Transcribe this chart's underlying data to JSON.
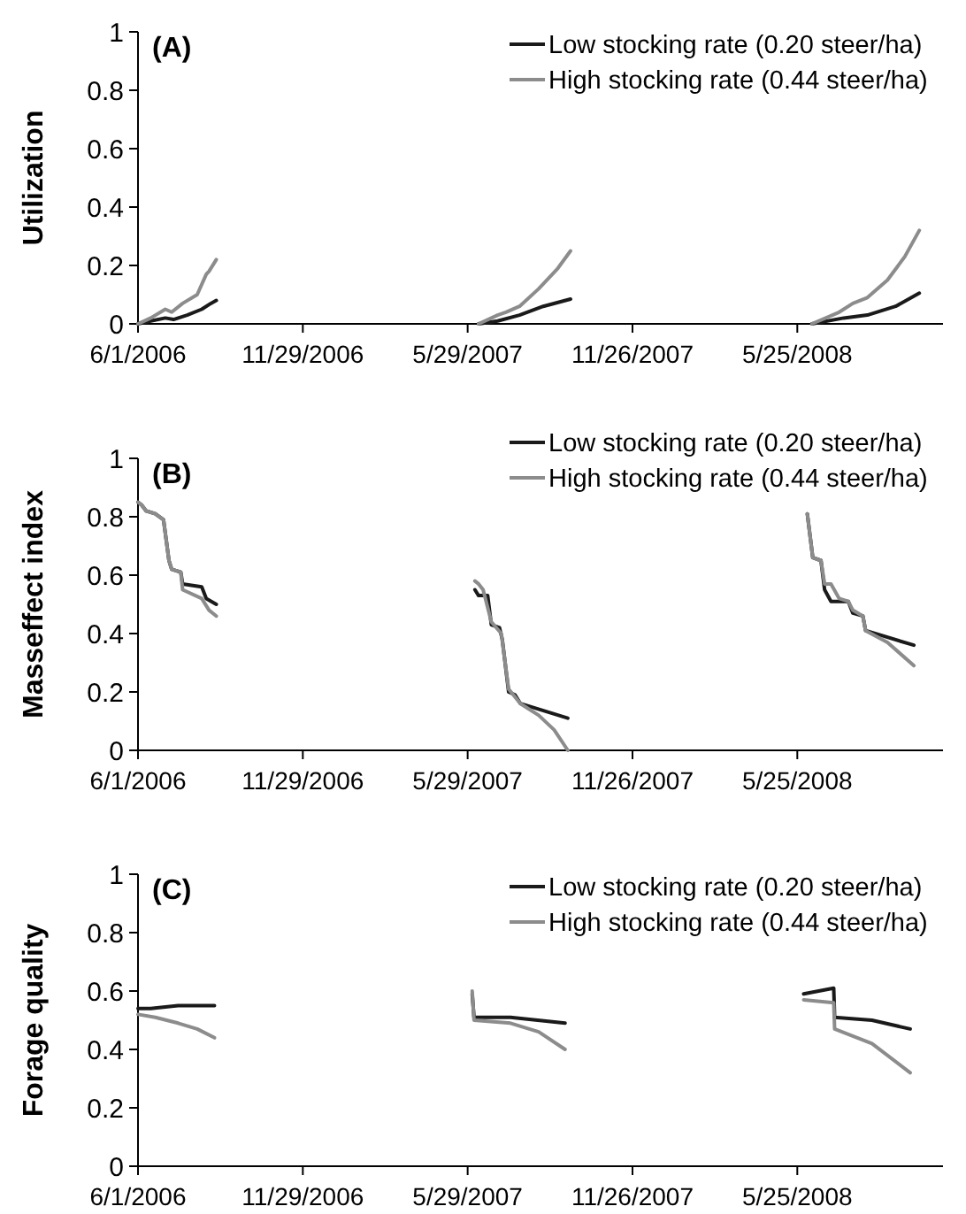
{
  "chart_data": [
    {
      "type": "line",
      "title": "(A)",
      "ylabel": "Utilization",
      "xlim": [
        "2006-06-01",
        "2008-11-01"
      ],
      "xticks": [
        {
          "value": "2006-06-01",
          "label": "6/1/2006"
        },
        {
          "value": "2006-11-29",
          "label": "11/29/2006"
        },
        {
          "value": "2007-05-29",
          "label": "5/29/2007"
        },
        {
          "value": "2007-11-26",
          "label": "11/26/2007"
        },
        {
          "value": "2008-05-25",
          "label": "5/25/2008"
        }
      ],
      "ylim": [
        0,
        1
      ],
      "yticks": [
        0,
        0.2,
        0.4,
        0.6,
        0.8,
        1
      ],
      "grid": false,
      "legend": "top right",
      "marker": "none",
      "line_style": "solid",
      "series": [
        {
          "name": "Low stocking rate (0.20 steer/ha)",
          "color": "#1a1a1a",
          "x": [
            "2006-06-01",
            "2006-06-15",
            "2006-07-01",
            "2006-07-10",
            "2006-07-25",
            "2006-08-10",
            "2006-08-20",
            "2006-08-26",
            "2007-01-01",
            "2007-06-10",
            "2007-07-01",
            "2007-07-25",
            "2007-08-20",
            "2007-09-19",
            "2008-01-01",
            "2008-06-10",
            "2008-07-15",
            "2008-08-10",
            "2008-09-10",
            "2008-10-06"
          ],
          "values": [
            0,
            0.01,
            0.02,
            0.015,
            0.03,
            0.05,
            0.07,
            0.08,
            null,
            0,
            0.01,
            0.03,
            0.06,
            0.085,
            null,
            0,
            0.02,
            0.03,
            0.06,
            0.105
          ]
        },
        {
          "name": "High stocking rate (0.44 steer/ha)",
          "color": "#8c8c8c",
          "x": [
            "2006-06-01",
            "2006-06-15",
            "2006-07-01",
            "2006-07-08",
            "2006-07-20",
            "2006-08-05",
            "2006-08-15",
            "2006-08-18",
            "2006-08-26",
            "2007-01-01",
            "2007-06-10",
            "2007-07-01",
            "2007-07-10",
            "2007-07-25",
            "2007-08-15",
            "2007-09-05",
            "2007-09-19",
            "2008-01-01",
            "2008-06-10",
            "2008-07-10",
            "2008-07-25",
            "2008-08-10",
            "2008-09-01",
            "2008-09-20",
            "2008-10-06"
          ],
          "values": [
            0,
            0.02,
            0.05,
            0.04,
            0.07,
            0.1,
            0.17,
            0.18,
            0.22,
            null,
            0,
            0.03,
            0.04,
            0.06,
            0.12,
            0.19,
            0.25,
            null,
            0,
            0.04,
            0.07,
            0.09,
            0.15,
            0.23,
            0.32
          ]
        }
      ]
    },
    {
      "type": "line",
      "title": "(B)",
      "ylabel": "Masseffect index",
      "xlim": [
        "2006-06-01",
        "2008-11-01"
      ],
      "xticks": [
        {
          "value": "2006-06-01",
          "label": "6/1/2006"
        },
        {
          "value": "2006-11-29",
          "label": "11/29/2006"
        },
        {
          "value": "2007-05-29",
          "label": "5/29/2007"
        },
        {
          "value": "2007-11-26",
          "label": "11/26/2007"
        },
        {
          "value": "2008-05-25",
          "label": "5/25/2008"
        }
      ],
      "ylim": [
        0,
        1
      ],
      "yticks": [
        0,
        0.2,
        0.4,
        0.6,
        0.8,
        1
      ],
      "grid": false,
      "legend": "top right",
      "marker": "none",
      "line_style": "solid",
      "series": [
        {
          "name": "Low stocking rate (0.20 steer/ha)",
          "color": "#1a1a1a",
          "x": [
            "2006-06-01",
            "2006-06-05",
            "2006-06-10",
            "2006-06-20",
            "2006-06-29",
            "2006-07-05",
            "2006-07-08",
            "2006-07-18",
            "2006-07-20",
            "2006-08-10",
            "2006-08-15",
            "2006-08-26",
            "2007-01-01",
            "2007-06-06",
            "2007-06-10",
            "2007-06-20",
            "2007-06-24",
            "2007-07-03",
            "2007-07-06",
            "2007-07-13",
            "2007-07-20",
            "2007-07-26",
            "2007-09-16",
            "2008-01-01",
            "2008-06-05",
            "2008-06-11",
            "2008-06-20",
            "2008-06-24",
            "2008-07-01",
            "2008-07-20",
            "2008-07-25",
            "2008-08-05",
            "2008-08-08",
            "2008-09-30"
          ],
          "values": [
            0.85,
            0.84,
            0.82,
            0.81,
            0.79,
            0.65,
            0.62,
            0.61,
            0.57,
            0.56,
            0.52,
            0.5,
            null,
            0.55,
            0.53,
            0.53,
            0.43,
            0.42,
            0.38,
            0.2,
            0.19,
            0.16,
            0.11,
            null,
            0.81,
            0.66,
            0.65,
            0.55,
            0.51,
            0.51,
            0.47,
            0.46,
            0.41,
            0.36
          ]
        },
        {
          "name": "High stocking rate (0.44 steer/ha)",
          "color": "#8c8c8c",
          "x": [
            "2006-06-01",
            "2006-06-05",
            "2006-06-10",
            "2006-06-20",
            "2006-06-29",
            "2006-07-05",
            "2006-07-08",
            "2006-07-18",
            "2006-07-20",
            "2006-08-10",
            "2006-08-18",
            "2006-08-26",
            "2007-01-01",
            "2007-06-06",
            "2007-06-10",
            "2007-06-15",
            "2007-06-24",
            "2007-07-05",
            "2007-07-13",
            "2007-07-26",
            "2007-08-15",
            "2007-09-01",
            "2007-09-16",
            "2008-01-01",
            "2008-06-05",
            "2008-06-11",
            "2008-06-20",
            "2008-06-24",
            "2008-07-01",
            "2008-07-10",
            "2008-07-20",
            "2008-07-25",
            "2008-08-05",
            "2008-08-08",
            "2008-09-01",
            "2008-09-30"
          ],
          "values": [
            0.85,
            0.84,
            0.82,
            0.81,
            0.79,
            0.65,
            0.62,
            0.61,
            0.55,
            0.52,
            0.48,
            0.46,
            null,
            0.58,
            0.57,
            0.55,
            0.44,
            0.4,
            0.21,
            0.16,
            0.12,
            0.07,
            0,
            null,
            0.81,
            0.66,
            0.65,
            0.57,
            0.57,
            0.52,
            0.51,
            0.48,
            0.46,
            0.41,
            0.37,
            0.29
          ]
        }
      ]
    },
    {
      "type": "line",
      "title": "(C)",
      "ylabel": "Forage quality",
      "xlim": [
        "2006-06-01",
        "2008-11-01"
      ],
      "xticks": [
        {
          "value": "2006-06-01",
          "label": "6/1/2006"
        },
        {
          "value": "2006-11-29",
          "label": "11/29/2006"
        },
        {
          "value": "2007-05-29",
          "label": "5/29/2007"
        },
        {
          "value": "2007-11-26",
          "label": "11/26/2007"
        },
        {
          "value": "2008-05-25",
          "label": "5/25/2008"
        }
      ],
      "ylim": [
        0,
        1
      ],
      "yticks": [
        0,
        0.2,
        0.4,
        0.6,
        0.8,
        1
      ],
      "grid": false,
      "legend": "top right",
      "marker": "none",
      "line_style": "solid",
      "series": [
        {
          "name": "Low stocking rate (0.20 steer/ha)",
          "color": "#1a1a1a",
          "x": [
            "2006-06-01",
            "2006-06-15",
            "2006-07-15",
            "2006-08-24",
            "2007-01-01",
            "2007-06-03",
            "2007-06-05",
            "2007-07-15",
            "2007-09-13",
            "2008-01-01",
            "2008-06-01",
            "2008-07-04",
            "2008-07-05",
            "2008-08-15",
            "2008-09-26"
          ],
          "values": [
            0.54,
            0.54,
            0.55,
            0.55,
            null,
            0.59,
            0.51,
            0.51,
            0.49,
            null,
            0.59,
            0.61,
            0.51,
            0.5,
            0.47
          ]
        },
        {
          "name": "High stocking rate (0.44 steer/ha)",
          "color": "#8c8c8c",
          "x": [
            "2006-06-01",
            "2006-06-20",
            "2006-07-15",
            "2006-08-05",
            "2006-08-24",
            "2007-01-01",
            "2007-06-03",
            "2007-06-05",
            "2007-07-15",
            "2007-08-15",
            "2007-09-13",
            "2008-01-01",
            "2008-06-01",
            "2008-07-04",
            "2008-07-05",
            "2008-08-15",
            "2008-09-26"
          ],
          "values": [
            0.52,
            0.51,
            0.49,
            0.47,
            0.44,
            null,
            0.6,
            0.5,
            0.49,
            0.46,
            0.4,
            null,
            0.57,
            0.56,
            0.47,
            0.42,
            0.32
          ]
        }
      ]
    }
  ]
}
